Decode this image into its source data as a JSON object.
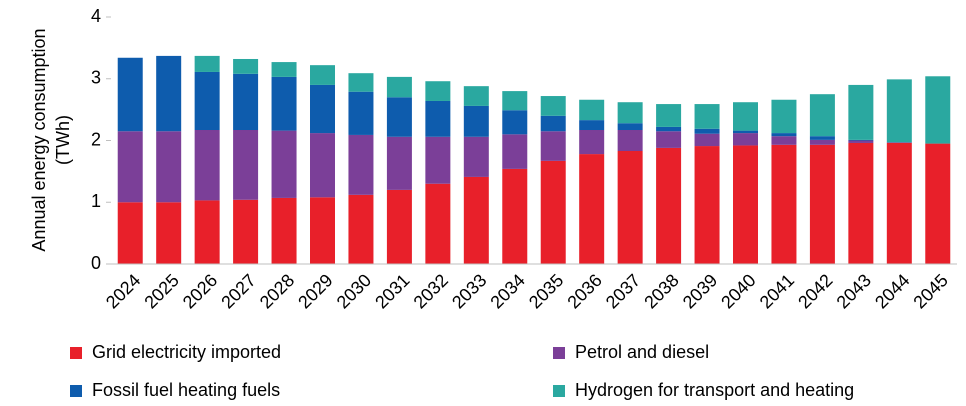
{
  "chart_data": {
    "type": "stacked_bar",
    "y_label": [
      "Annual energy consumption",
      "(TWh)"
    ],
    "categories": [
      "2024",
      "2025",
      "2026",
      "2027",
      "2028",
      "2029",
      "2030",
      "2031",
      "2032",
      "2033",
      "2034",
      "2035",
      "2036",
      "2037",
      "2038",
      "2039",
      "2040",
      "2041",
      "2042",
      "2043",
      "2044",
      "2045"
    ],
    "series": [
      {
        "name": "Grid electricity imported",
        "color": "#e8202a",
        "values": [
          1.0,
          1.0,
          1.03,
          1.04,
          1.07,
          1.08,
          1.12,
          1.2,
          1.3,
          1.41,
          1.54,
          1.67,
          1.78,
          1.83,
          1.88,
          1.91,
          1.92,
          1.93,
          1.93,
          1.96,
          1.96,
          1.95
        ]
      },
      {
        "name": "Petrol and diesel",
        "color": "#7b3f98",
        "values": [
          1.15,
          1.15,
          1.14,
          1.13,
          1.09,
          1.04,
          0.97,
          0.86,
          0.76,
          0.65,
          0.56,
          0.48,
          0.39,
          0.34,
          0.27,
          0.2,
          0.2,
          0.14,
          0.08,
          0.04,
          0.01,
          0
        ]
      },
      {
        "name": "Fossil fuel heating fuels",
        "color": "#0e5cad",
        "values": [
          1.19,
          1.22,
          0.94,
          0.91,
          0.87,
          0.78,
          0.7,
          0.64,
          0.58,
          0.5,
          0.39,
          0.25,
          0.16,
          0.11,
          0.07,
          0.08,
          0.04,
          0.05,
          0.06,
          0.01,
          0,
          0
        ]
      },
      {
        "name": "Hydrogen for transport and heating",
        "color": "#2aa8a0",
        "values": [
          0,
          0,
          0.26,
          0.24,
          0.24,
          0.32,
          0.3,
          0.33,
          0.32,
          0.32,
          0.31,
          0.32,
          0.33,
          0.34,
          0.37,
          0.4,
          0.46,
          0.54,
          0.68,
          0.89,
          1.02,
          1.09
        ]
      }
    ],
    "ylim": [
      0,
      4
    ],
    "yticks": [
      0,
      1,
      2,
      3,
      4
    ],
    "grid": false
  }
}
